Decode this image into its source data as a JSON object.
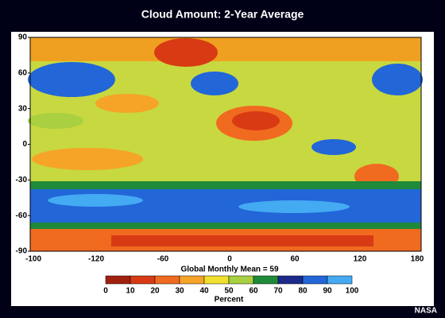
{
  "title": "Cloud Amount: 2-Year Average",
  "map": {
    "x_tick_labels": [
      "-100",
      "-120",
      "-60",
      "0",
      "60",
      "120",
      "180"
    ],
    "ylim": [
      -90,
      90
    ],
    "yticks": [
      90,
      60,
      30,
      0,
      -30,
      -60,
      -90
    ]
  },
  "caption": "Global Monthly Mean = 59",
  "colorbar": {
    "lim": [
      0,
      100
    ],
    "ticks": [
      0,
      10,
      20,
      30,
      40,
      50,
      60,
      70,
      80,
      90,
      100
    ],
    "colors": [
      "#a02010",
      "#d83a14",
      "#f06a20",
      "#f5a428",
      "#f2e030",
      "#a8d040",
      "#1f8a3a",
      "#1c2a8a",
      "#2266d8",
      "#44aaf2"
    ],
    "label": "Percent"
  },
  "credit": "NASA"
}
